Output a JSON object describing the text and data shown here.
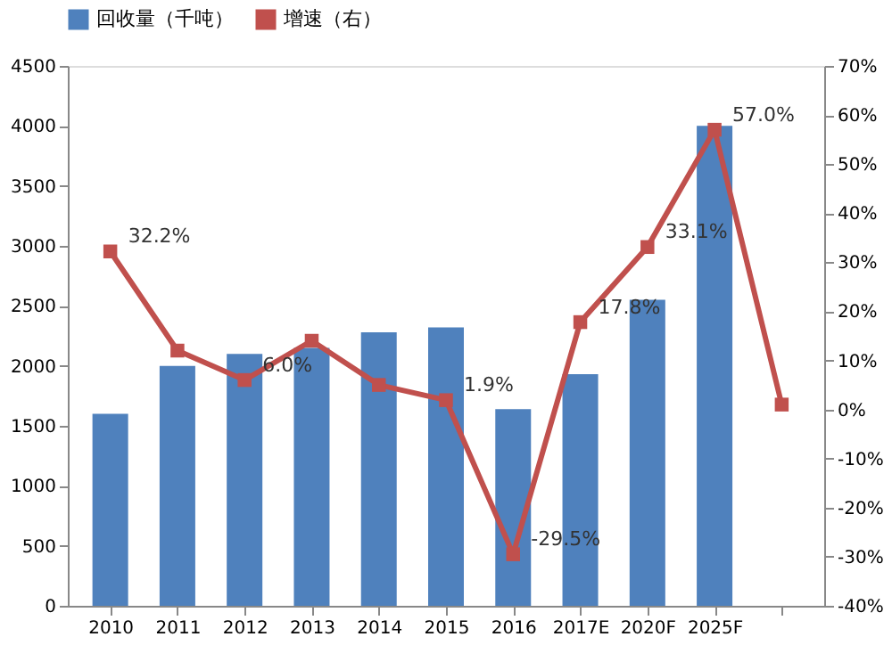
{
  "chart_data": {
    "type": "bar",
    "categories": [
      "2010",
      "2011",
      "2012",
      "2013",
      "2014",
      "2015",
      "2016",
      "2017E",
      "2020F",
      "2025F",
      null
    ],
    "series": [
      {
        "name": "回收量（千吨）",
        "color": "#4f81bd",
        "values": [
          1600,
          2000,
          2100,
          2150,
          2280,
          2320,
          1640,
          1930,
          2550,
          4000,
          null
        ]
      },
      {
        "name": "增速（右）",
        "color": "#c0504d",
        "type": "line",
        "axis": "y2",
        "marker": "square",
        "values": [
          32.2,
          12,
          6.0,
          14,
          5,
          1.9,
          -29.5,
          17.8,
          33.1,
          57.0,
          1
        ],
        "value_labels": [
          "32.2%",
          null,
          "6.0%",
          null,
          null,
          "1.9%",
          "-29.5%",
          "17.8%",
          "33.1%",
          "57.0%",
          null
        ]
      }
    ],
    "ylim": [
      0,
      4500
    ],
    "yticks": [
      0,
      500,
      1000,
      1500,
      2000,
      2500,
      3000,
      3500,
      4000,
      4500
    ],
    "y2lim": [
      -40,
      70
    ],
    "y2ticks": [
      {
        "value": -40,
        "label": "-40%"
      },
      {
        "value": -30,
        "label": "-30%"
      },
      {
        "value": -20,
        "label": "-20%"
      },
      {
        "value": -10,
        "label": "-10%"
      },
      {
        "value": 0,
        "label": "0%"
      },
      {
        "value": 10,
        "label": "10%"
      },
      {
        "value": 20,
        "label": "20%"
      },
      {
        "value": 30,
        "label": "30%"
      },
      {
        "value": 40,
        "label": "40%"
      },
      {
        "value": 50,
        "label": "50%"
      },
      {
        "value": 60,
        "label": "60%"
      },
      {
        "value": 70,
        "label": "70%"
      }
    ],
    "grid": false,
    "legend": "top"
  }
}
